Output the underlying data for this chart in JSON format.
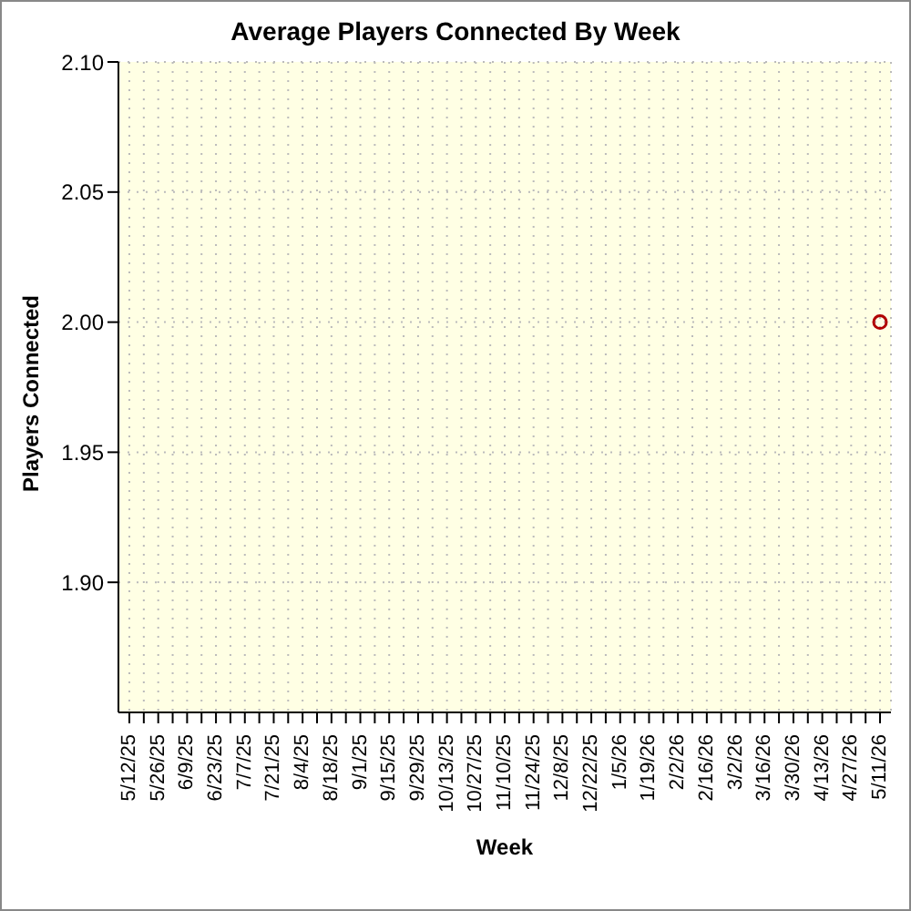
{
  "chart_data": {
    "type": "line",
    "title": "Average Players Connected By Week",
    "xlabel": "Week",
    "ylabel": "Players Connected",
    "categories": [
      "5/12/25",
      null,
      "5/26/25",
      null,
      "6/9/25",
      null,
      "6/23/25",
      null,
      "7/7/25",
      null,
      "7/21/25",
      null,
      "8/4/25",
      null,
      "8/18/25",
      null,
      "9/1/25",
      null,
      "9/15/25",
      null,
      "9/29/25",
      null,
      "10/13/25",
      null,
      "10/27/25",
      null,
      "11/10/25",
      null,
      "11/24/25",
      null,
      "12/8/25",
      null,
      "12/22/25",
      null,
      "1/5/26",
      null,
      "1/19/26",
      null,
      "2/2/26",
      null,
      "2/16/26",
      null,
      "3/2/26",
      null,
      "3/16/26",
      null,
      "3/30/26",
      null,
      "4/13/26",
      null,
      "4/27/26",
      null,
      "5/11/26"
    ],
    "series": [
      {
        "color": "#b00000",
        "values": [
          null,
          null,
          null,
          null,
          null,
          null,
          null,
          null,
          null,
          null,
          null,
          null,
          null,
          null,
          null,
          null,
          null,
          null,
          null,
          null,
          null,
          null,
          null,
          null,
          null,
          null,
          null,
          null,
          null,
          null,
          null,
          null,
          null,
          null,
          null,
          null,
          null,
          null,
          null,
          null,
          null,
          null,
          null,
          null,
          null,
          null,
          null,
          null,
          null,
          null,
          null,
          null,
          2.0
        ]
      }
    ],
    "ylim": [
      1.85,
      2.1
    ],
    "yticks": [
      {
        "value": 1.9,
        "label": "1.90"
      },
      1.95,
      {
        "value": 2,
        "label": "2.00"
      },
      2.05,
      {
        "value": 2.1,
        "label": "2.10"
      }
    ],
    "grid": true,
    "marker": "circle"
  }
}
